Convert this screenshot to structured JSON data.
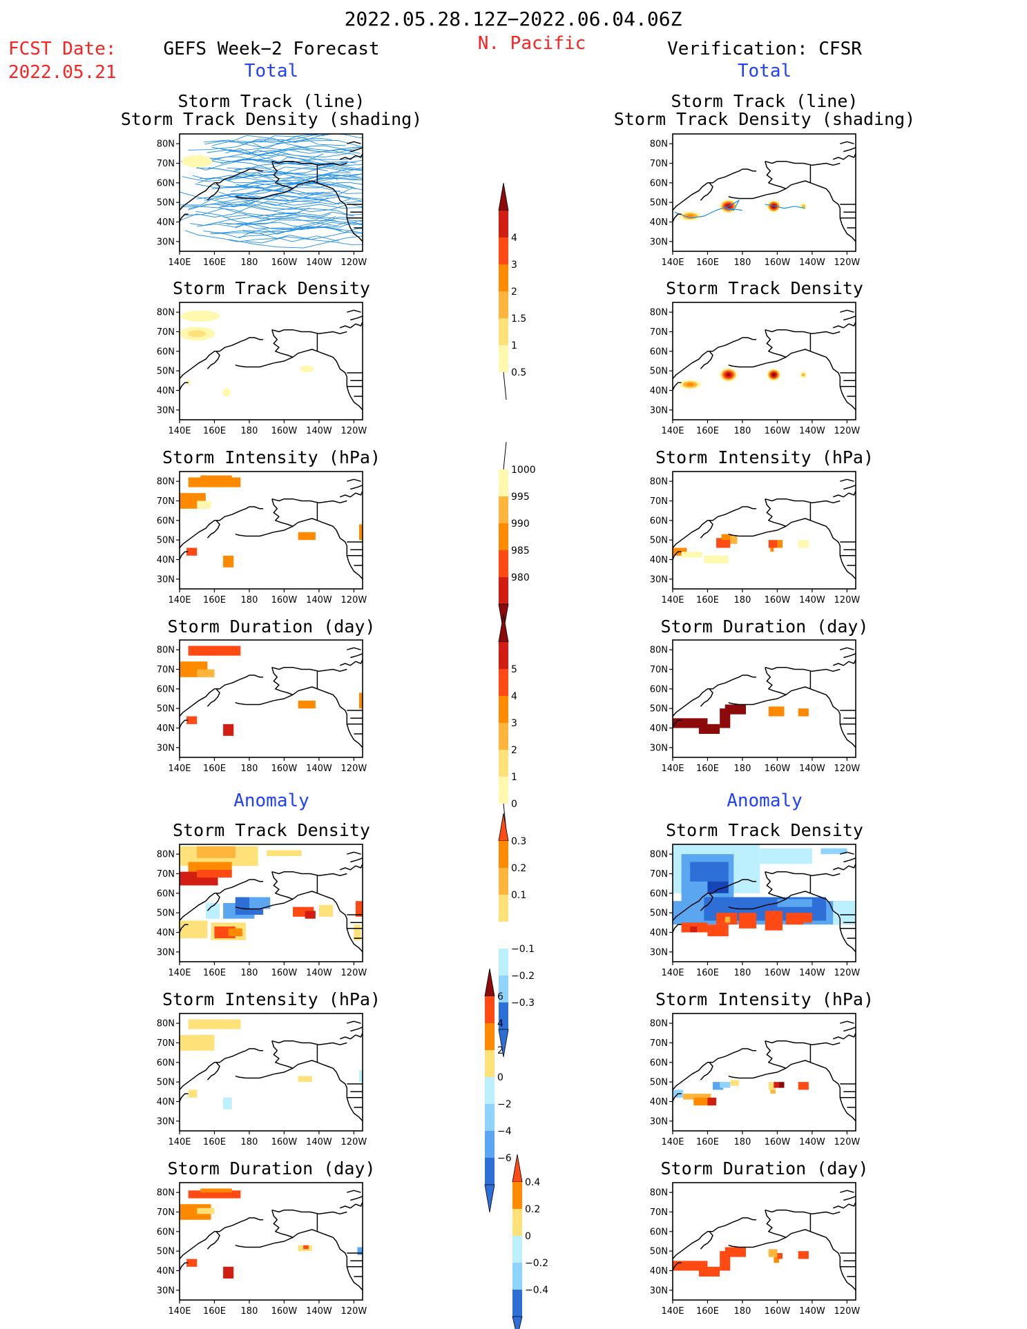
{
  "header": {
    "period": "2022.05.28.12Z−2022.06.04.06Z",
    "region": "N. Pacific",
    "fcst_label": "FCST Date:",
    "fcst_date": "2022.05.21",
    "left_title": "GEFS Week−2 Forecast",
    "right_title": "Verification: CFSR",
    "total_label": "Total",
    "anomaly_label": "Anomaly"
  },
  "panel_titles": {
    "track_line": "Storm Track (line)",
    "track_shading": "Storm Track Density (shading)",
    "density": "Storm Track Density",
    "intensity": "Storm Intensity (hPa)",
    "duration": "Storm Duration (day)"
  },
  "colors": {
    "red_text": "#ff2020",
    "blue_text": "#2040ff",
    "track_line": "#1e8ee6",
    "levels_warm": [
      "#fff9b0",
      "#ffe17a",
      "#ffb43c",
      "#ff8a00",
      "#ff4a14",
      "#d21e12",
      "#8c0a0a"
    ],
    "levels_cool": [
      "#bdf0ff",
      "#8fd3ff",
      "#5aa6f0",
      "#2d6fd6",
      "#1446b8"
    ]
  },
  "chart_data": [
    {
      "type": "heatmap",
      "column": "GEFS Week−2 Forecast",
      "section": "Total",
      "panels": [
        {
          "title": "Storm Track (line) / Storm Track Density (shading)",
          "x_ticks": [
            "140E",
            "160E",
            "180",
            "160W",
            "140W",
            "120W"
          ],
          "y_ticks": [
            "80N",
            "70N",
            "60N",
            "50N",
            "40N",
            "30N"
          ]
        },
        {
          "title": "Storm Track Density",
          "x_ticks": [
            "140E",
            "160E",
            "180",
            "160W",
            "140W",
            "120W"
          ],
          "y_ticks": [
            "80N",
            "70N",
            "60N",
            "50N",
            "40N",
            "30N"
          ]
        },
        {
          "title": "Storm Intensity (hPa)",
          "x_ticks": [
            "140E",
            "160E",
            "180",
            "160W",
            "140W",
            "120W"
          ],
          "y_ticks": [
            "80N",
            "70N",
            "60N",
            "50N",
            "40N",
            "30N"
          ]
        },
        {
          "title": "Storm Duration (day)",
          "x_ticks": [
            "140E",
            "160E",
            "180",
            "160W",
            "140W",
            "120W"
          ],
          "y_ticks": [
            "80N",
            "70N",
            "60N",
            "50N",
            "40N",
            "30N"
          ]
        }
      ]
    },
    {
      "type": "heatmap",
      "column": "Verification: CFSR",
      "section": "Total",
      "panels": [
        {
          "title": "Storm Track (line) / Storm Track Density (shading)"
        },
        {
          "title": "Storm Track Density"
        },
        {
          "title": "Storm Intensity (hPa)"
        },
        {
          "title": "Storm Duration (day)"
        }
      ]
    },
    {
      "type": "heatmap",
      "column": "GEFS Week−2 Forecast",
      "section": "Anomaly",
      "panels": [
        {
          "title": "Storm Track Density"
        },
        {
          "title": "Storm Intensity (hPa)"
        },
        {
          "title": "Storm Duration (day)"
        }
      ]
    },
    {
      "type": "heatmap",
      "column": "Verification: CFSR",
      "section": "Anomaly",
      "panels": [
        {
          "title": "Storm Track Density"
        },
        {
          "title": "Storm Intensity (hPa)"
        },
        {
          "title": "Storm Duration (day)"
        }
      ]
    }
  ],
  "colorbars": {
    "density_total": [
      "0.5",
      "1",
      "1.5",
      "2",
      "3",
      "4"
    ],
    "intensity_total": [
      "1000",
      "995",
      "990",
      "985",
      "980"
    ],
    "duration_total": [
      "0",
      "1",
      "2",
      "3",
      "4",
      "5"
    ],
    "density_anom": [
      "0.3",
      "0.2",
      "0.1",
      "−0.1",
      "−0.2",
      "−0.3"
    ],
    "intensity_anom": [
      "6",
      "4",
      "2",
      "0",
      "−2",
      "−4",
      "−6"
    ],
    "duration_anom": [
      "0.4",
      "0.2",
      "0",
      "−0.2",
      "−0.4"
    ]
  }
}
